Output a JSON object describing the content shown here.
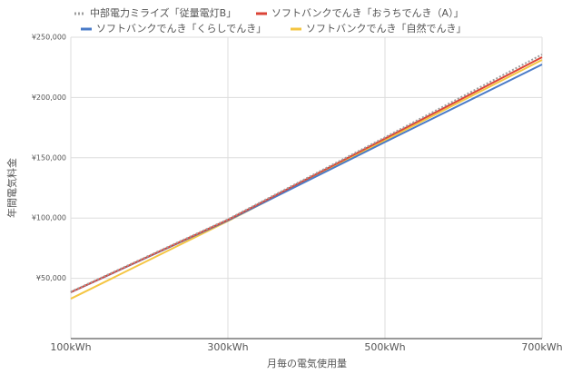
{
  "chart_data": {
    "type": "line",
    "x_label": "月毎の電気使用量",
    "y_label": "年間電気料金",
    "x": [
      100,
      300,
      500,
      700
    ],
    "series": [
      {
        "name": "中部電力ミライズ「従量電灯B」",
        "color": "#9e9e9e",
        "dashed": true,
        "values": [
          38900,
          99000,
          167000,
          235700
        ]
      },
      {
        "name": "ソフトバンクでんき「おうちでんき（A）」",
        "color": "#db4437",
        "values": [
          38500,
          98500,
          166000,
          233400
        ]
      },
      {
        "name": "ソフトバンクでんき「くらしでんき」",
        "color": "#4a7bc8",
        "values": [
          38400,
          98000,
          163000,
          227400
        ]
      },
      {
        "name": "ソフトバンクでんき「自然でんき」",
        "color": "#f4c542",
        "values": [
          33100,
          97500,
          164500,
          231200
        ]
      }
    ],
    "xlim": [
      100,
      700
    ],
    "xticks": [
      {
        "value": 100,
        "label": "100kWh"
      },
      {
        "value": 300,
        "label": "300kWh"
      },
      {
        "value": 500,
        "label": "500kWh"
      },
      {
        "value": 700,
        "label": "700kWh"
      }
    ],
    "ylim": [
      0,
      250000
    ],
    "yticks": [
      {
        "value": 50000,
        "label": "¥50,000"
      },
      {
        "value": 100000,
        "label": "¥100,000"
      },
      {
        "value": 150000,
        "label": "¥150,000"
      },
      {
        "value": 200000,
        "label": "¥200,000"
      },
      {
        "value": 250000,
        "label": "¥250,000"
      }
    ],
    "grid": true
  }
}
